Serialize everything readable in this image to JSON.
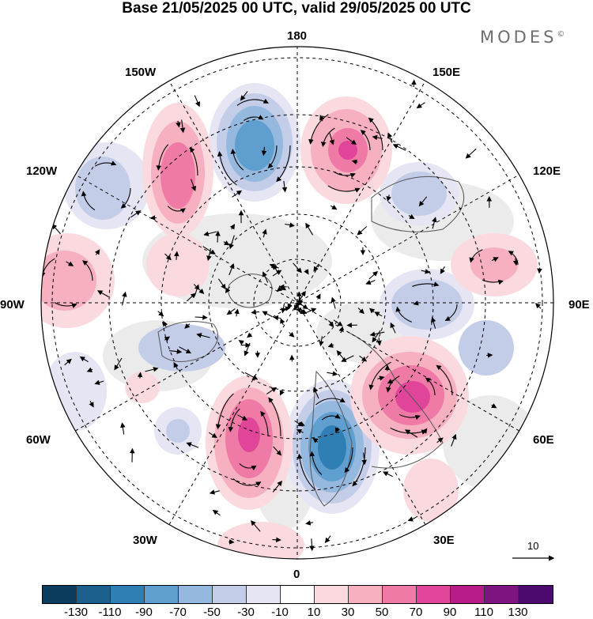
{
  "title": "Base 21/05/2025 00 UTC, valid 29/05/2025 00 UTC",
  "brand": "MODES",
  "brand_mark": "©",
  "lon_labels": {
    "n180": "180",
    "w150": "150W",
    "e150": "150E",
    "w120": "120W",
    "e120": "120E",
    "w90": "90W",
    "e90": "90E",
    "w60": "60W",
    "e60": "60E",
    "w30": "30W",
    "e30": "30E",
    "s0": "0"
  },
  "reference_vector": "10",
  "colorbar": {
    "colors": [
      "#0b3c5d",
      "#1b5f8c",
      "#2f7fb5",
      "#5f9fcf",
      "#94b8de",
      "#c4cde8",
      "#e5e5f3",
      "#ffffff",
      "#fbdadf",
      "#f6b0c0",
      "#f07aa6",
      "#e0459a",
      "#b81c8a",
      "#7e1480",
      "#4d0a6e"
    ],
    "ticks": [
      "-130",
      "-110",
      "-90",
      "-70",
      "-50",
      "-30",
      "-10",
      "10",
      "30",
      "50",
      "70",
      "90",
      "110",
      "130"
    ]
  }
}
